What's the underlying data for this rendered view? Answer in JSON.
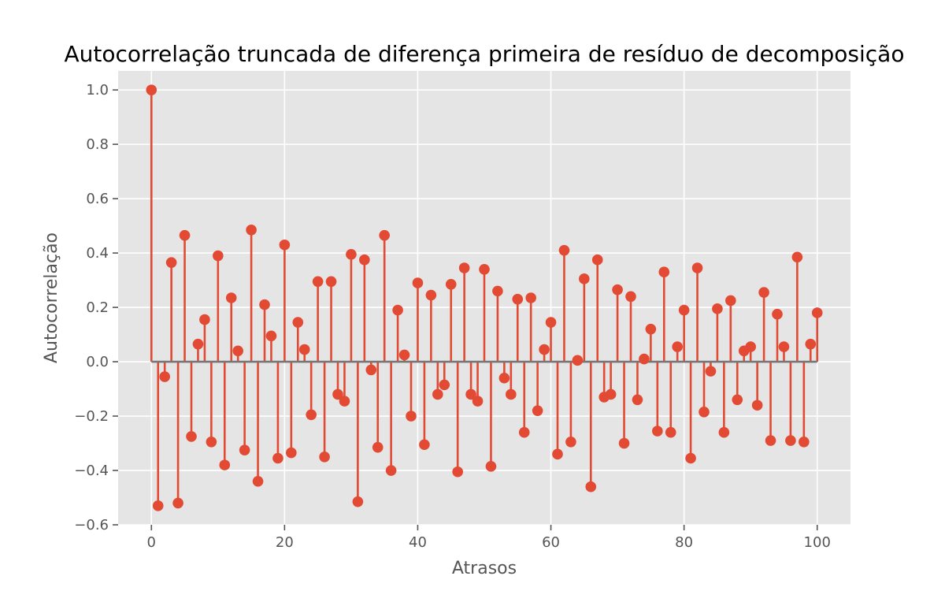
{
  "chart_data": {
    "type": "stem",
    "title": "Autocorrelação truncada de diferença primeira de resíduo de decomposição",
    "xlabel": "Atrasos",
    "ylabel": "Autocorrelação",
    "xlim": [
      -5,
      105
    ],
    "ylim": [
      -0.6,
      1.07
    ],
    "grid": true,
    "x_ticks": [
      0,
      20,
      40,
      60,
      80,
      100
    ],
    "x_tick_labels": [
      "0",
      "20",
      "40",
      "60",
      "80",
      "100"
    ],
    "y_ticks": [
      -0.6,
      -0.4,
      -0.2,
      0.0,
      0.2,
      0.4,
      0.6,
      0.8,
      1.0
    ],
    "y_tick_labels": [
      "−0.6",
      "−0.4",
      "−0.2",
      "0.0",
      "0.2",
      "0.4",
      "0.6",
      "0.8",
      "1.0"
    ],
    "colors": {
      "stem": "#E24A33",
      "baseline": "#777777",
      "plot_background": "#E5E5E5",
      "grid": "#FFFFFF"
    },
    "x": [
      0,
      1,
      2,
      3,
      4,
      5,
      6,
      7,
      8,
      9,
      10,
      11,
      12,
      13,
      14,
      15,
      16,
      17,
      18,
      19,
      20,
      21,
      22,
      23,
      24,
      25,
      26,
      27,
      28,
      29,
      30,
      31,
      32,
      33,
      34,
      35,
      36,
      37,
      38,
      39,
      40,
      41,
      42,
      43,
      44,
      45,
      46,
      47,
      48,
      49,
      50,
      51,
      52,
      53,
      54,
      55,
      56,
      57,
      58,
      59,
      60,
      61,
      62,
      63,
      64,
      65,
      66,
      67,
      68,
      69,
      70,
      71,
      72,
      73,
      74,
      75,
      76,
      77,
      78,
      79,
      80,
      81,
      82,
      83,
      84,
      85,
      86,
      87,
      88,
      89,
      90,
      91,
      92,
      93,
      94,
      95,
      96,
      97,
      98,
      99,
      100
    ],
    "values": [
      1.0,
      -0.53,
      -0.055,
      0.365,
      -0.52,
      0.465,
      -0.275,
      0.065,
      0.155,
      -0.295,
      0.39,
      -0.38,
      0.235,
      0.04,
      -0.325,
      0.485,
      -0.44,
      0.21,
      0.095,
      -0.355,
      0.43,
      -0.335,
      0.145,
      0.045,
      -0.195,
      0.295,
      -0.35,
      0.295,
      -0.12,
      -0.145,
      0.395,
      -0.515,
      0.375,
      -0.03,
      -0.315,
      0.465,
      -0.4,
      0.19,
      0.025,
      -0.2,
      0.29,
      -0.305,
      0.245,
      -0.12,
      -0.085,
      0.285,
      -0.405,
      0.345,
      -0.12,
      -0.145,
      0.34,
      -0.385,
      0.26,
      -0.06,
      -0.12,
      0.23,
      -0.26,
      0.235,
      -0.18,
      0.045,
      0.145,
      -0.34,
      0.41,
      -0.295,
      0.005,
      0.305,
      -0.46,
      0.375,
      -0.13,
      -0.12,
      0.265,
      -0.3,
      0.24,
      -0.14,
      0.01,
      0.12,
      -0.255,
      0.33,
      -0.26,
      0.055,
      0.19,
      -0.355,
      0.345,
      -0.185,
      -0.035,
      0.195,
      -0.26,
      0.225,
      -0.14,
      0.04,
      0.055,
      -0.16,
      0.255,
      -0.29,
      0.175,
      0.055,
      -0.29,
      0.385,
      -0.295,
      0.065,
      0.18
    ]
  }
}
